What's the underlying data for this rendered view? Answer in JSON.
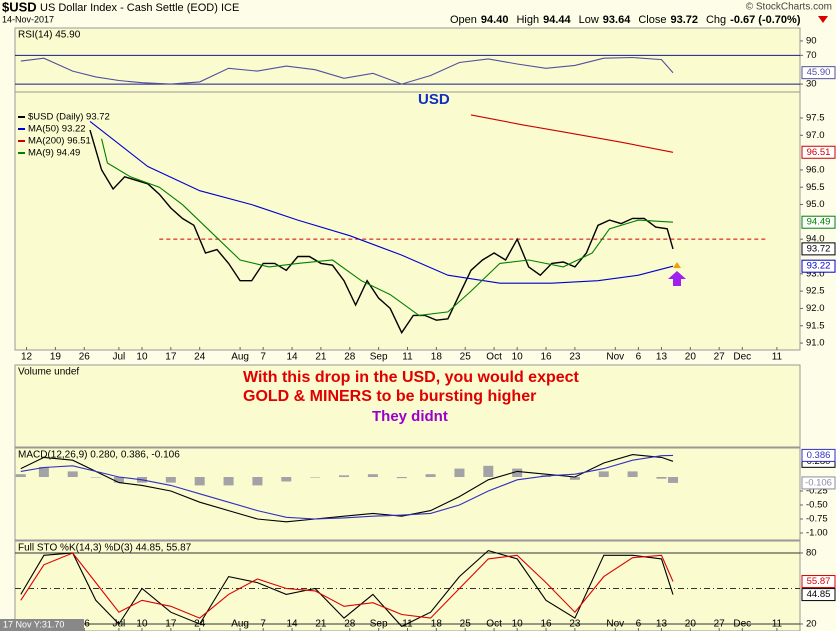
{
  "header": {
    "symbol": "$USD",
    "name": "US Dollar Index - Cash Settle (EOD) ICE",
    "date": "14-Nov-2017",
    "source": "© StockCharts.com",
    "quote": [
      {
        "label": "Open",
        "value": "94.40"
      },
      {
        "label": "High",
        "value": "94.44"
      },
      {
        "label": "Low",
        "value": "93.64"
      },
      {
        "label": "Close",
        "value": "93.72"
      },
      {
        "label": "Chg",
        "value": "-0.67 (-0.70%)"
      }
    ]
  },
  "cursor_label": "17 Nov Y:31.70",
  "x_axis": {
    "xlim": [
      -2,
      134
    ],
    "xticks": [
      {
        "value": 0,
        "label": "12"
      },
      {
        "value": 5,
        "label": "19"
      },
      {
        "value": 10,
        "label": "26"
      },
      {
        "value": 16,
        "label": "Jul"
      },
      {
        "value": 20,
        "label": "10"
      },
      {
        "value": 25,
        "label": "17"
      },
      {
        "value": 30,
        "label": "24"
      },
      {
        "value": 37,
        "label": "Aug"
      },
      {
        "value": 41,
        "label": "7"
      },
      {
        "value": 46,
        "label": "14"
      },
      {
        "value": 51,
        "label": "21"
      },
      {
        "value": 56,
        "label": "28"
      },
      {
        "value": 61,
        "label": "Sep"
      },
      {
        "value": 66,
        "label": "11"
      },
      {
        "value": 71,
        "label": "18"
      },
      {
        "value": 76,
        "label": "25"
      },
      {
        "value": 81,
        "label": "Oct"
      },
      {
        "value": 85,
        "label": "10"
      },
      {
        "value": 90,
        "label": "16"
      },
      {
        "value": 95,
        "label": "23"
      },
      {
        "value": 102,
        "label": "Nov"
      },
      {
        "value": 106,
        "label": "6"
      },
      {
        "value": 110,
        "label": "13"
      },
      {
        "value": 115,
        "label": "20"
      },
      {
        "value": 120,
        "label": "27"
      },
      {
        "value": 124,
        "label": "Dec"
      },
      {
        "value": 130,
        "label": "11"
      }
    ]
  },
  "chart_data": [
    {
      "type": "line",
      "title": "RSI(14) 45.90",
      "ylim": [
        19,
        108
      ],
      "yticks": [
        90,
        70,
        30
      ],
      "hlines": [
        {
          "value": 70,
          "color": "#1a1a8c"
        },
        {
          "value": 30,
          "color": "#1a1a8c"
        }
      ],
      "series": [
        {
          "color": "#5050a0",
          "last_label": "45.90",
          "x": [
            -1,
            3,
            8,
            12,
            16,
            20,
            25,
            30,
            35,
            40,
            45,
            50,
            55,
            60,
            65,
            70,
            75,
            80,
            85,
            90,
            95,
            100,
            105,
            110,
            112
          ],
          "values": [
            62,
            66,
            48,
            40,
            35,
            32,
            30,
            33,
            52,
            48,
            55,
            50,
            38,
            45,
            30,
            42,
            60,
            65,
            58,
            52,
            56,
            66,
            67,
            64,
            45.9
          ]
        }
      ]
    },
    {
      "type": "line",
      "ylim": [
        90.8,
        98.25
      ],
      "yticks": [
        97.5,
        {
          "value": 97,
          "label": "97.0"
        },
        {
          "value": 96,
          "label": "96.0"
        },
        95.5,
        {
          "value": 95,
          "label": "95.0"
        },
        {
          "value": 94,
          "label": "94.0"
        },
        {
          "value": 93,
          "label": "93.0"
        },
        92.5,
        {
          "value": 92,
          "label": "92.0"
        },
        91.5,
        {
          "value": 91,
          "label": "91.0"
        }
      ],
      "hlines": [
        {
          "value": 94.0,
          "x": [
            23,
            128
          ],
          "color": "#cc0000",
          "style": "dashed"
        }
      ],
      "annotations": [
        {
          "text": "USD",
          "color": "#1030c0"
        }
      ],
      "series": [
        {
          "name": "$USD (Daily) 93.72",
          "color": "#000000",
          "last_label": "93.72",
          "x": [
            11,
            13,
            15,
            17,
            19,
            21,
            23,
            25,
            27,
            29,
            31,
            33,
            35,
            37,
            39,
            41,
            43,
            45,
            47,
            49,
            51,
            53,
            55,
            57,
            59,
            61,
            63,
            65,
            67,
            69,
            71,
            73,
            75,
            77,
            79,
            81,
            83,
            85,
            87,
            89,
            91,
            93,
            95,
            97,
            99,
            101,
            103,
            105,
            107,
            109,
            111,
            112
          ],
          "values": [
            97.15,
            96.0,
            95.45,
            95.8,
            95.7,
            95.6,
            95.3,
            94.9,
            94.6,
            94.4,
            93.6,
            93.7,
            93.3,
            92.8,
            92.8,
            93.3,
            93.3,
            93.1,
            93.5,
            93.5,
            93.3,
            93.25,
            92.8,
            92.1,
            92.8,
            92.3,
            92.0,
            91.3,
            91.8,
            91.8,
            91.66,
            91.7,
            92.4,
            93.1,
            93.4,
            93.6,
            93.4,
            94.0,
            93.2,
            92.96,
            93.3,
            93.34,
            93.2,
            93.6,
            94.4,
            94.55,
            94.45,
            94.6,
            94.6,
            94.35,
            94.3,
            93.72
          ]
        },
        {
          "name": "MA(50) 93.22",
          "color": "#0000cc",
          "last_label": "93.22",
          "x": [
            11,
            21,
            30,
            39,
            47,
            56,
            65,
            73,
            82,
            91,
            99,
            106,
            112
          ],
          "values": [
            97.4,
            96.1,
            95.4,
            95.0,
            94.55,
            94.1,
            93.54,
            92.96,
            92.73,
            92.73,
            92.8,
            92.96,
            93.22
          ]
        },
        {
          "name": "MA(200) 96.51",
          "color": "#cc0000",
          "last_label": "96.51",
          "x": [
            77,
            86,
            94,
            103,
            112
          ],
          "values": [
            97.59,
            97.3,
            97.07,
            96.8,
            96.51
          ]
        },
        {
          "name": "MA(9) 94.49",
          "color": "#008000",
          "last_label": "94.49",
          "x": [
            13,
            14,
            18,
            23,
            27,
            32,
            37,
            42,
            47,
            53,
            58,
            63,
            68,
            73,
            77,
            82,
            87,
            93,
            98,
            101,
            106,
            112
          ],
          "values": [
            96.9,
            96.2,
            95.8,
            95.5,
            95.0,
            94.2,
            93.4,
            93.2,
            93.3,
            93.4,
            92.8,
            92.4,
            91.8,
            91.9,
            92.5,
            93.3,
            93.4,
            93.2,
            93.6,
            94.3,
            94.55,
            94.49
          ]
        }
      ]
    },
    {
      "type": "text",
      "title": "Volume undef",
      "annotations": [
        {
          "text": "With this drop in the USD, you would expect",
          "color": "#e00000"
        },
        {
          "text": "GOLD & MINERS to be bursting higher",
          "color": "#e00000"
        },
        {
          "text": "They didnt",
          "color": "#9900cc"
        }
      ]
    },
    {
      "type": "line",
      "title": "MACD(12,26,9) 0.280, 0.386, -0.106",
      "ylim": [
        -1.125,
        0.518
      ],
      "yticks": [
        -0.25,
        {
          "value": -0.5,
          "label": "-0.50"
        },
        -0.75,
        {
          "value": -1,
          "label": "-1.00"
        }
      ],
      "series": [
        {
          "type": "bar",
          "color": "#8c8c9c",
          "last_label": "-0.106",
          "x": [
            -1,
            3,
            8,
            12,
            16,
            20,
            25,
            30,
            35,
            40,
            45,
            50,
            55,
            60,
            65,
            70,
            75,
            80,
            85,
            90,
            95,
            100,
            105,
            110,
            112
          ],
          "values": [
            0.05,
            0.18,
            0.1,
            0.0,
            -0.1,
            -0.1,
            -0.1,
            -0.15,
            -0.15,
            -0.15,
            -0.08,
            0.0,
            0.03,
            0.05,
            -0.02,
            0.05,
            0.15,
            0.2,
            0.15,
            0.03,
            -0.05,
            0.1,
            0.1,
            -0.03,
            -0.106
          ]
        },
        {
          "color": "#000000",
          "last_label": "0.280",
          "x": [
            -1,
            3,
            8,
            12,
            16,
            20,
            25,
            30,
            35,
            40,
            45,
            50,
            55,
            60,
            65,
            70,
            75,
            80,
            85,
            90,
            95,
            100,
            105,
            110,
            112
          ],
          "values": [
            0.15,
            0.35,
            0.3,
            0.1,
            -0.1,
            -0.15,
            -0.25,
            -0.45,
            -0.6,
            -0.75,
            -0.8,
            -0.75,
            -0.7,
            -0.65,
            -0.7,
            -0.6,
            -0.35,
            -0.05,
            0.1,
            0.05,
            0.0,
            0.25,
            0.4,
            0.35,
            0.28
          ]
        },
        {
          "color": "#3030c0",
          "last_label": "0.386",
          "x": [
            -1,
            3,
            8,
            12,
            16,
            20,
            25,
            30,
            35,
            40,
            45,
            50,
            55,
            60,
            65,
            70,
            75,
            80,
            85,
            90,
            95,
            100,
            105,
            110,
            112
          ],
          "values": [
            0.1,
            0.17,
            0.2,
            0.1,
            0.0,
            -0.05,
            -0.15,
            -0.3,
            -0.45,
            -0.6,
            -0.72,
            -0.75,
            -0.73,
            -0.7,
            -0.68,
            -0.65,
            -0.5,
            -0.25,
            -0.05,
            0.02,
            0.05,
            0.15,
            0.3,
            0.38,
            0.386
          ]
        }
      ]
    },
    {
      "type": "line",
      "title": "Full STO %K(14,3) %D(3) 44.85, 55.87",
      "ylim": [
        14.1,
        90.1
      ],
      "yticks": [
        80,
        20
      ],
      "hlines": [
        {
          "value": 80,
          "color": "#333333"
        },
        {
          "value": 50,
          "color": "#333333",
          "style": "dashdot"
        },
        {
          "value": 20,
          "color": "#333333"
        }
      ],
      "series": [
        {
          "color": "#000000",
          "last_label": "44.85",
          "x": [
            -1,
            3,
            8,
            12,
            16,
            20,
            25,
            30,
            35,
            40,
            45,
            50,
            55,
            60,
            65,
            70,
            75,
            80,
            85,
            90,
            95,
            100,
            105,
            110,
            112
          ],
          "values": [
            45,
            78,
            80,
            40,
            20,
            50,
            30,
            20,
            60,
            55,
            45,
            50,
            25,
            45,
            18,
            30,
            60,
            82,
            75,
            40,
            25,
            78,
            78,
            75,
            44.85
          ]
        },
        {
          "color": "#dd0000",
          "last_label": "55.87",
          "x": [
            -1,
            3,
            8,
            12,
            16,
            20,
            25,
            30,
            35,
            40,
            45,
            50,
            55,
            60,
            65,
            70,
            75,
            80,
            85,
            90,
            95,
            100,
            105,
            110,
            112
          ],
          "values": [
            40,
            70,
            80,
            55,
            30,
            40,
            35,
            25,
            45,
            58,
            50,
            48,
            35,
            38,
            28,
            25,
            50,
            75,
            78,
            55,
            30,
            60,
            76,
            78,
            55.87
          ]
        }
      ]
    }
  ]
}
